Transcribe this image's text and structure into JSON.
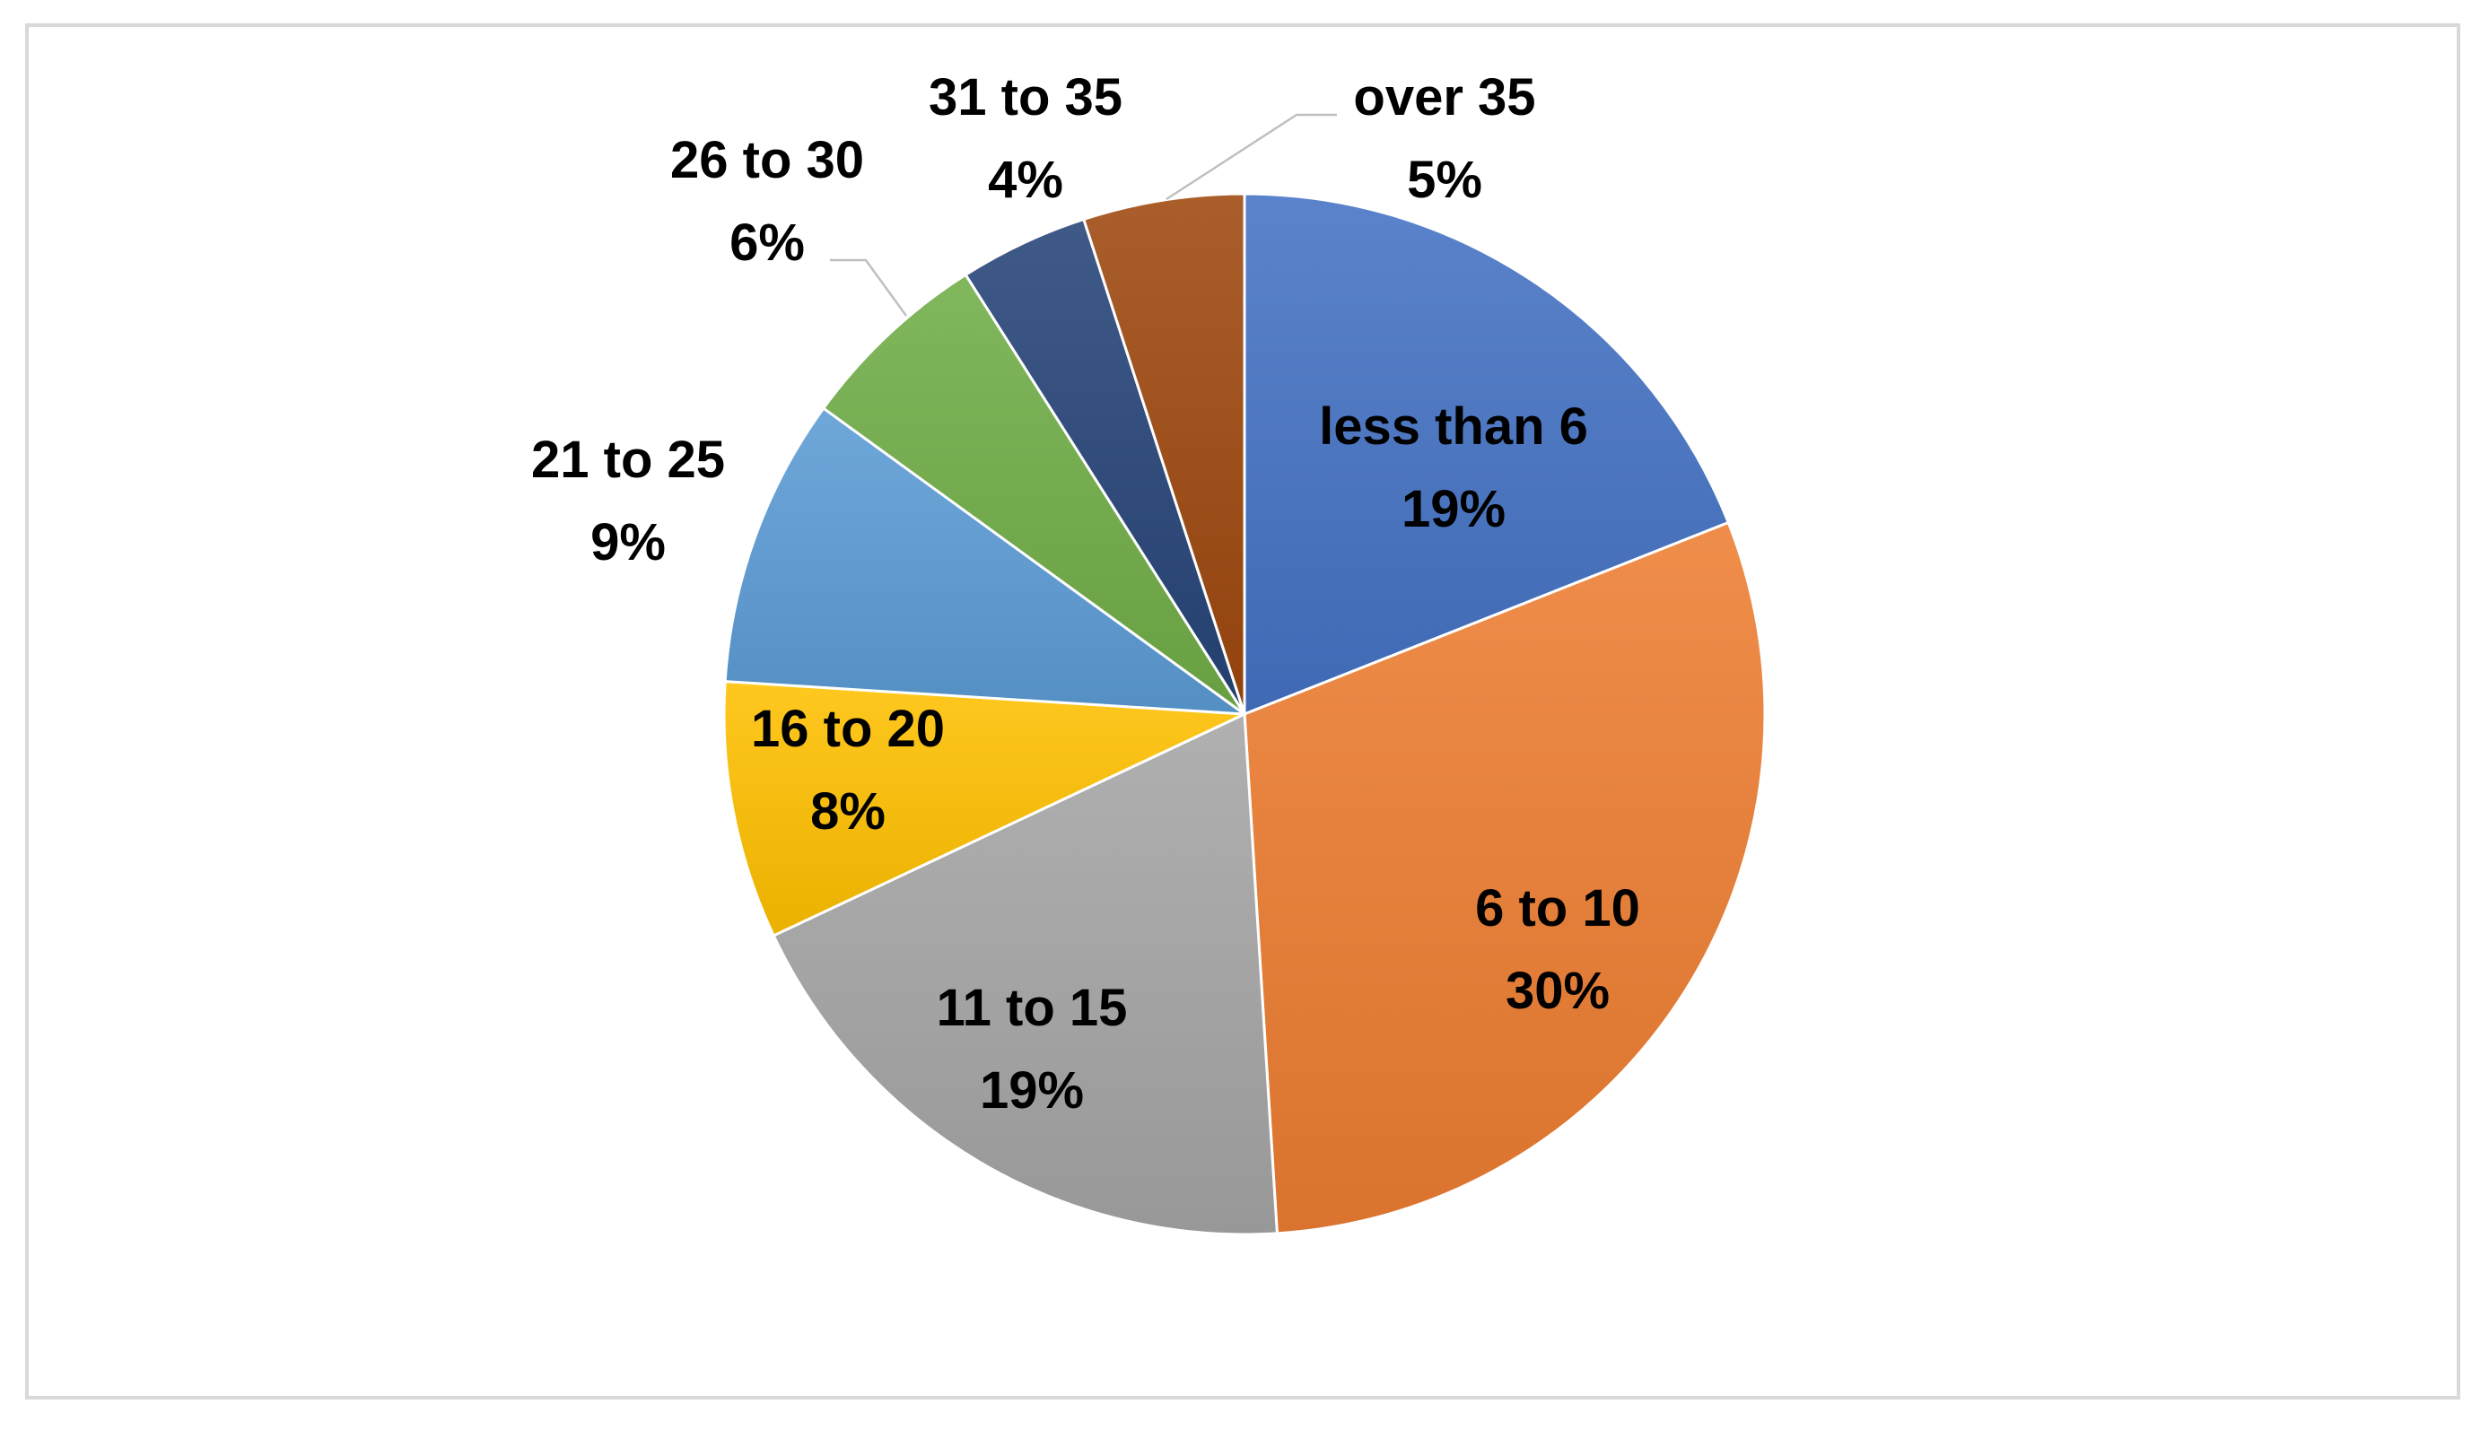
{
  "chart_data": {
    "type": "pie",
    "title": "",
    "slices": [
      {
        "category": "less than 6",
        "value": 19,
        "label": "19%",
        "color": "#4472C4"
      },
      {
        "category": "6 to 10",
        "value": 30,
        "label": "30%",
        "color": "#ED7D31"
      },
      {
        "category": "11 to 15",
        "value": 19,
        "label": "19%",
        "color": "#A5A5A5"
      },
      {
        "category": "16 to 20",
        "value": 8,
        "label": "8%",
        "color": "#FFC000"
      },
      {
        "category": "21 to 25",
        "value": 9,
        "label": "9%",
        "color": "#5B9BD5"
      },
      {
        "category": "26 to 30",
        "value": 6,
        "label": "6%",
        "color": "#70AD47"
      },
      {
        "category": "31 to 35",
        "value": 4,
        "label": "4%",
        "color": "#264478"
      },
      {
        "category": "over 35",
        "value": 5,
        "label": "5%",
        "color": "#9E480E"
      }
    ],
    "legend": "none"
  }
}
